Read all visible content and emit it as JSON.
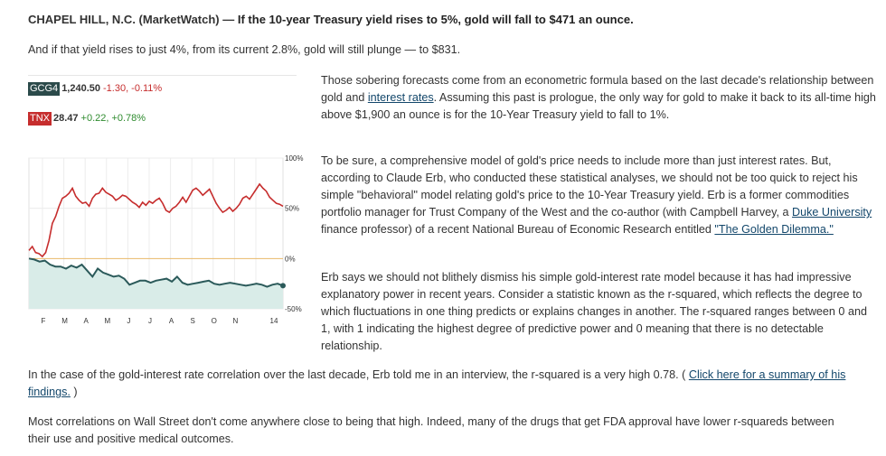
{
  "top_fragment": "",
  "dateline": {
    "place": "CHAPEL HILL, N.C. (MarketWatch) —",
    "lead": "If the 10-year Treasury yield rises to 5%, gold will fall to $471 an ounce."
  },
  "intro": "And if that yield rises to just 4%, from its current 2.8%, gold will still plunge — to $831.",
  "quotes": [
    {
      "symbol": "GCG4",
      "price": "1,240.50",
      "change": "-1.30",
      "pct": "-0.11%"
    },
    {
      "symbol": "TNX",
      "price": "28.47",
      "change": "+0.22",
      "pct": "+0.78%"
    }
  ],
  "colors": {
    "gold_series": "#c62d2d",
    "yield_series": "#2b5a5a",
    "area_fill": "#d9ece8",
    "link": "#13476b"
  },
  "chart_data": {
    "type": "line",
    "x_ticks": [
      "F",
      "M",
      "A",
      "M",
      "J",
      "J",
      "A",
      "S",
      "O",
      "N",
      "14"
    ],
    "y_ticks": [
      "100%",
      "50%",
      "0%",
      "-50%"
    ],
    "ylim": [
      -50,
      100
    ],
    "series": [
      {
        "name": "TNX",
        "values": [
          8,
          12,
          6,
          5,
          2,
          6,
          18,
          35,
          42,
          52,
          60,
          62,
          65,
          70,
          62,
          58,
          55,
          56,
          52,
          60,
          64,
          65,
          70,
          66,
          64,
          62,
          58,
          60,
          63,
          62,
          59,
          56,
          54,
          51,
          56,
          53,
          57,
          55,
          58,
          60,
          55,
          48,
          46,
          50,
          52,
          56,
          61,
          56,
          62,
          68,
          70,
          67,
          63,
          66,
          69,
          62,
          55,
          50,
          46,
          48,
          51,
          47,
          50,
          54,
          60,
          62,
          59,
          64,
          69,
          74,
          70,
          67,
          61,
          58,
          55,
          54,
          52
        ]
      },
      {
        "name": "GCG4",
        "values": [
          0,
          -1,
          -3,
          -2,
          -6,
          -8,
          -8,
          -10,
          -7,
          -9,
          -6,
          -12,
          -18,
          -10,
          -14,
          -16,
          -18,
          -17,
          -20,
          -26,
          -24,
          -22,
          -22,
          -24,
          -22,
          -21,
          -20,
          -23,
          -18,
          -24,
          -26,
          -25,
          -24,
          -23,
          -22,
          -25,
          -26,
          -25,
          -24,
          -25,
          -26,
          -27,
          -26,
          -25,
          -26,
          -28,
          -26,
          -25,
          -27
        ]
      }
    ]
  },
  "paragraphs": {
    "p1": {
      "t1": "Those sobering forecasts come from an econometric formula based on the last decade's relationship between gold and ",
      "link": "interest rates",
      "t2": ". Assuming this past is prologue, the only way for gold to make it back to its all-time high above $1,900 an ounce is for the 10-Year Treasury yield to fall to 1%."
    },
    "p2": {
      "t1": "To be sure, a comprehensive model of gold's price needs to include more than just interest rates. But, according to Claude Erb, who conducted these statistical analyses, we should not be too quick to reject his simple \"behavioral\" model relating gold's price to the 10-Year Treasury yield. Erb is a former commodities portfolio manager for Trust Company of the West and the co-author (with Campbell Harvey, a ",
      "link1": "Duke University",
      "t2": " finance professor) of a recent National Bureau of Economic Research entitled ",
      "link2": "\"The Golden Dilemma.\""
    },
    "p3": "Erb says we should not blithely dismiss his simple gold-interest rate model because it has had impressive explanatory power in recent years. Consider a statistic known as the r-squared, which reflects the degree to which fluctuations in one thing predicts or explains changes in another. The r-squared ranges between 0 and 1, with 1 indicating the highest degree of predictive power and 0 meaning that there is no detectable relationship.",
    "p4": {
      "t1": "In the case of the gold-interest rate correlation over the last decade, Erb told me in an interview, the r-squared is a very high 0.78. ( ",
      "link": "Click here for a summary of his findings.",
      "t2": " )"
    },
    "p5": "Most correlations on Wall Street don't come anywhere close to being that high. Indeed, many of the drugs that get FDA approval have lower r-squareds between their use and positive medical outcomes."
  }
}
